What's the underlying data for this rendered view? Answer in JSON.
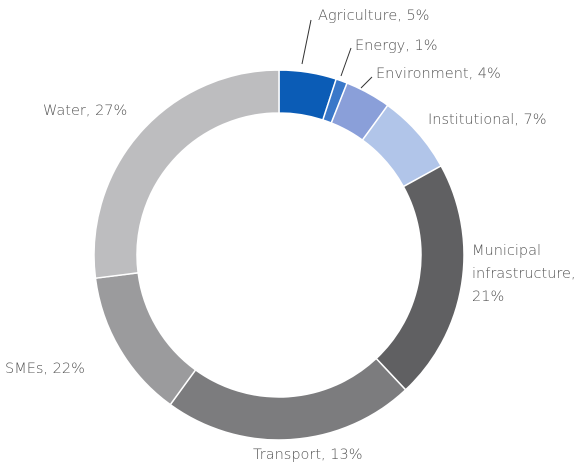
{
  "chart_data": {
    "type": "pie",
    "labels": [
      "Agriculture, 5%",
      "Energy, 1%",
      "Environment, 4%",
      "Institutional, 7%",
      "Municipal infrastructure, 21%",
      "SMEs, 22%",
      "Transport, 13%",
      "Water, 27%"
    ],
    "values": [
      5,
      1,
      4,
      7,
      21,
      22,
      13,
      27
    ],
    "colors": [
      "#0b5cb6",
      "#3a78c9",
      "#8a9fd9",
      "#b1c5e9",
      "#606062",
      "#7c7c7e",
      "#9b9b9d",
      "#bdbdbf"
    ],
    "donut": true
  }
}
